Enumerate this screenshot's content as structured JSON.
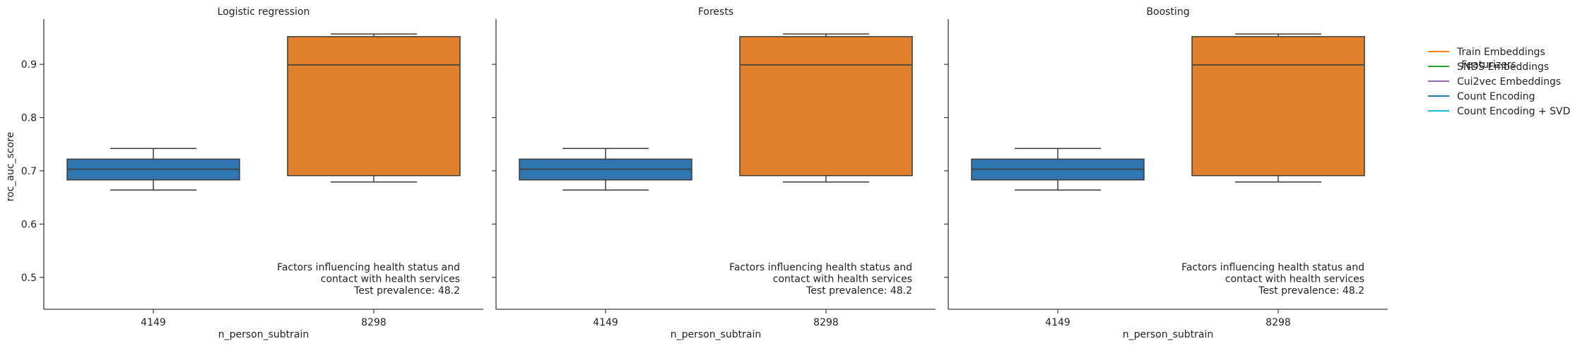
{
  "chart_data": {
    "type": "box",
    "y_axis_label": "roc_auc_score",
    "x_axis_label": "n_person_subtrain",
    "ylim": [
      0.44,
      0.985
    ],
    "yticks": [
      0.5,
      0.6,
      0.7,
      0.8,
      0.9
    ],
    "grid": false,
    "categories": [
      "4149",
      "8298"
    ],
    "panels": [
      {
        "title": "Logistic regression",
        "annotation": [
          "Factors influencing health status and",
          "contact with health services",
          "Test prevalence: 48.2"
        ],
        "boxes": [
          {
            "category": "4149",
            "color": "#2f76b0",
            "whisker_low": 0.664,
            "q1": 0.683,
            "median": 0.703,
            "q3": 0.722,
            "whisker_high": 0.742
          },
          {
            "category": "8298",
            "color": "#e1812c",
            "whisker_low": 0.679,
            "q1": 0.691,
            "median": 0.899,
            "q3": 0.952,
            "whisker_high": 0.957
          }
        ]
      },
      {
        "title": "Forests",
        "annotation": [
          "Factors influencing health status and",
          "contact with health services",
          "Test prevalence: 48.2"
        ],
        "boxes": [
          {
            "category": "4149",
            "color": "#2f76b0",
            "whisker_low": 0.664,
            "q1": 0.683,
            "median": 0.703,
            "q3": 0.722,
            "whisker_high": 0.742
          },
          {
            "category": "8298",
            "color": "#e1812c",
            "whisker_low": 0.679,
            "q1": 0.691,
            "median": 0.899,
            "q3": 0.952,
            "whisker_high": 0.957
          }
        ]
      },
      {
        "title": "Boosting",
        "annotation": [
          "Factors influencing health status and",
          "contact with health services",
          "Test prevalence: 48.2"
        ],
        "boxes": [
          {
            "category": "4149",
            "color": "#2f76b0",
            "whisker_low": 0.664,
            "q1": 0.683,
            "median": 0.703,
            "q3": 0.722,
            "whisker_high": 0.742
          },
          {
            "category": "8298",
            "color": "#e1812c",
            "whisker_low": 0.679,
            "q1": 0.691,
            "median": 0.899,
            "q3": 0.952,
            "whisker_high": 0.957
          }
        ]
      }
    ],
    "legend": {
      "title": "Featurizers",
      "placement": "right",
      "entries": [
        {
          "label": "Train Embeddings",
          "color": "#ff7f0e"
        },
        {
          "label": "SNDS Embeddings",
          "color": "#2ca02c"
        },
        {
          "label": "Cui2vec Embeddings",
          "color": "#9467bd"
        },
        {
          "label": "Count Encoding",
          "color": "#1f77b4"
        },
        {
          "label": "Count Encoding + SVD",
          "color": "#17becf"
        }
      ]
    }
  }
}
